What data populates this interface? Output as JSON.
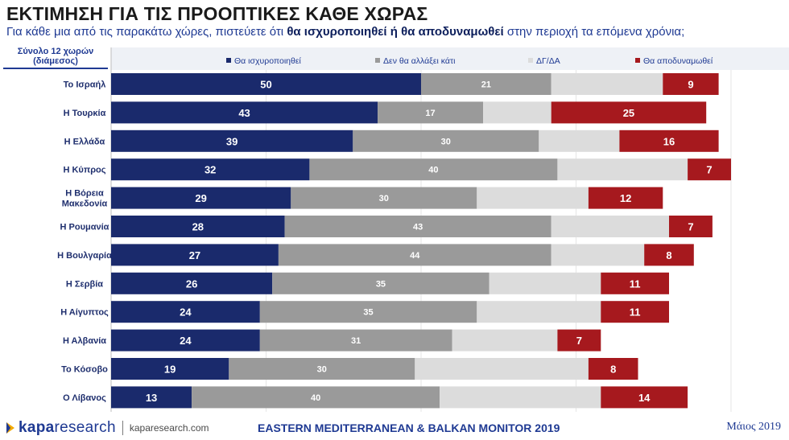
{
  "header": {
    "title": "ΕΚΤΙΜΗΣΗ ΓΙΑ ΤΙΣ ΠΡΟΟΠΤΙΚΕΣ ΚΑΘΕ ΧΩΡΑΣ",
    "subtitle_pre": "Για κάθε μια από τις παρακάτω χώρες, πιστεύετε ότι ",
    "subtitle_bold": "θα ισχυροποιηθεί ή θα αποδυναμωθεί",
    "subtitle_post": " στην περιοχή τα επόμενα χρόνια;",
    "corner_line1": "Σύνολο 12 χωρών",
    "corner_line2": "(διάμεσος)"
  },
  "chart_data": {
    "type": "bar",
    "orientation": "horizontal",
    "stacked": true,
    "legend_position": "top",
    "categories": [
      "Το Ισραήλ",
      "Η Τουρκία",
      "Η Ελλάδα",
      "Η Κύπρος",
      "Η Βόρεια Μακεδονία",
      "Η Ρουμανία",
      "Η Βουλγαρία",
      "Η Σερβία",
      "Η Αίγυπτος",
      "Η Αλβανία",
      "Το Κόσοβο",
      "Ο Λίβανος"
    ],
    "series": [
      {
        "name": "Θα ισχυροποιηθεί",
        "color": "#1a2a6c",
        "show_labels": true,
        "values": [
          50,
          43,
          39,
          32,
          29,
          28,
          27,
          26,
          24,
          24,
          19,
          13
        ]
      },
      {
        "name": "Δεν θα αλλάξει κάτι",
        "color": "#9a9a9a",
        "show_labels": true,
        "values": [
          21,
          17,
          30,
          40,
          30,
          43,
          44,
          35,
          35,
          31,
          30,
          40
        ]
      },
      {
        "name": "ΔΓ/ΔΑ",
        "color": "#dcdcdc",
        "show_labels": false,
        "values": [
          18,
          11,
          13,
          21,
          18,
          19,
          15,
          18,
          20,
          17,
          28,
          26
        ]
      },
      {
        "name": "Θα αποδυναμωθεί",
        "color": "#a6191e",
        "show_labels": true,
        "values": [
          9,
          25,
          16,
          7,
          12,
          7,
          8,
          11,
          11,
          7,
          8,
          14
        ]
      }
    ],
    "xlim": [
      0,
      100
    ]
  },
  "footer": {
    "brand_bold": "kapa",
    "brand_rest": "research",
    "url": "kaparesearch.com",
    "center": "EASTERN MEDITERRANEAN & BALKAN MONITOR 2019",
    "date": "Μάιος 2019"
  }
}
